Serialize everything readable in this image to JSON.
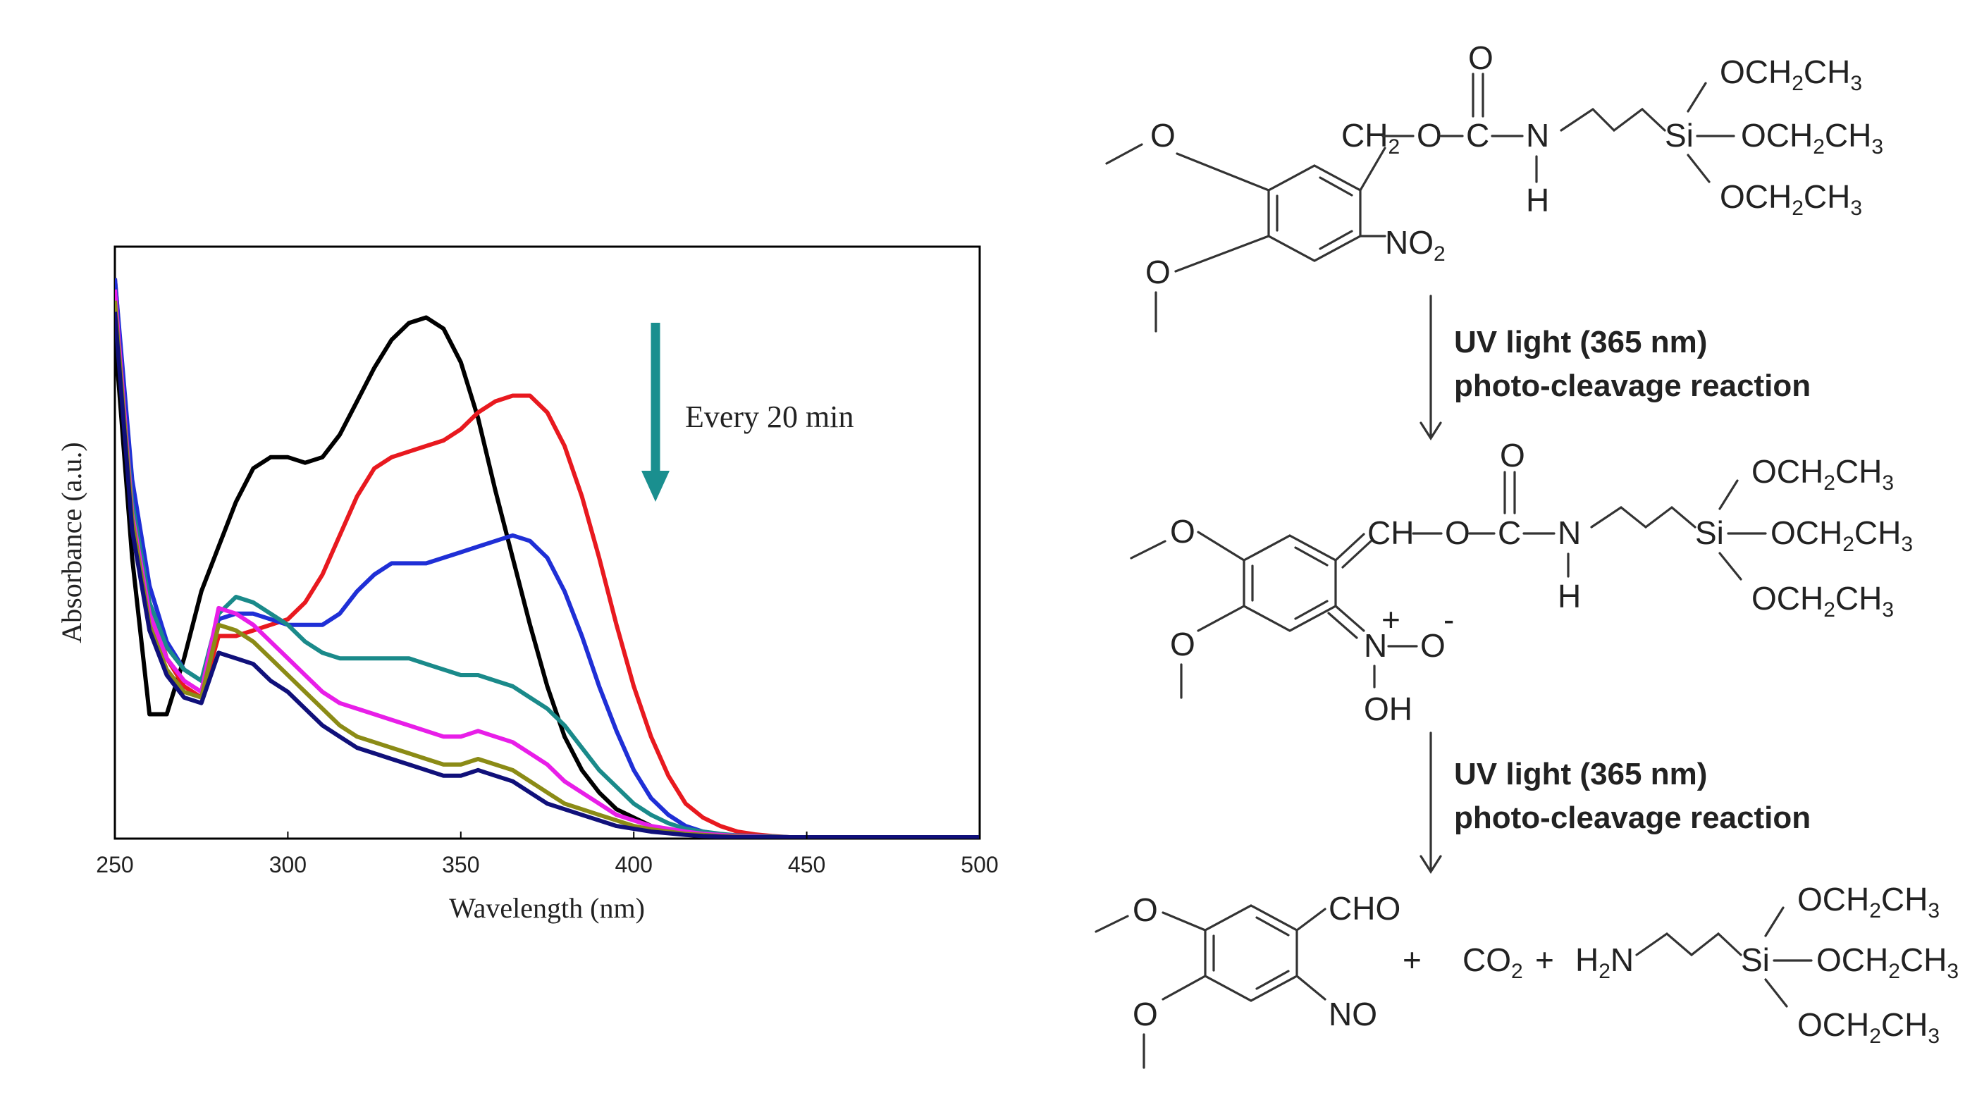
{
  "colors": {
    "frame": "#000000",
    "arrow_annotation": "#1a8f8f",
    "text": "#222222"
  },
  "chart_data": {
    "type": "line",
    "title": "",
    "xlabel": "Wavelength (nm)",
    "ylabel": "Absorbance (a.u.)",
    "xlim": [
      250,
      500
    ],
    "ylim": [
      0,
      1.0
    ],
    "x_ticks": [
      "250",
      "300",
      "350",
      "400",
      "450",
      "500"
    ],
    "grid": false,
    "legend": "none",
    "annotation": "Every 20 min",
    "annotation_arrow": "down",
    "x": [
      250,
      255,
      260,
      265,
      270,
      275,
      280,
      285,
      290,
      295,
      300,
      305,
      310,
      315,
      320,
      325,
      330,
      335,
      340,
      345,
      350,
      355,
      360,
      365,
      370,
      375,
      380,
      385,
      390,
      395,
      400,
      405,
      410,
      415,
      420,
      425,
      430,
      435,
      440,
      445,
      450,
      460,
      470,
      480,
      490,
      500
    ],
    "series": [
      {
        "color": "#000000",
        "values": [
          0.9,
          0.5,
          0.22,
          0.22,
          0.32,
          0.44,
          0.52,
          0.6,
          0.66,
          0.68,
          0.68,
          0.67,
          0.68,
          0.72,
          0.78,
          0.84,
          0.89,
          0.92,
          0.93,
          0.91,
          0.85,
          0.75,
          0.62,
          0.5,
          0.38,
          0.27,
          0.18,
          0.12,
          0.08,
          0.05,
          0.035,
          0.02,
          0.01,
          0.005,
          0.003,
          0.002,
          0.001,
          0.0,
          0.0,
          0.0,
          0.0,
          0.0,
          0.0,
          0.0,
          0.0,
          0.0
        ]
      },
      {
        "color": "#e8191f",
        "values": [
          1.0,
          0.62,
          0.42,
          0.32,
          0.27,
          0.25,
          0.36,
          0.36,
          0.37,
          0.38,
          0.39,
          0.42,
          0.47,
          0.54,
          0.61,
          0.66,
          0.68,
          0.69,
          0.7,
          0.71,
          0.73,
          0.76,
          0.78,
          0.79,
          0.79,
          0.76,
          0.7,
          0.61,
          0.5,
          0.38,
          0.27,
          0.18,
          0.11,
          0.06,
          0.035,
          0.02,
          0.01,
          0.005,
          0.002,
          0.0,
          0.0,
          0.0,
          0.0,
          0.0,
          0.0,
          0.0
        ]
      },
      {
        "color": "#1f2fd6",
        "values": [
          1.0,
          0.64,
          0.45,
          0.35,
          0.3,
          0.28,
          0.39,
          0.4,
          0.4,
          0.39,
          0.38,
          0.38,
          0.38,
          0.4,
          0.44,
          0.47,
          0.49,
          0.49,
          0.49,
          0.5,
          0.51,
          0.52,
          0.53,
          0.54,
          0.53,
          0.5,
          0.44,
          0.36,
          0.27,
          0.19,
          0.12,
          0.07,
          0.04,
          0.02,
          0.01,
          0.005,
          0.003,
          0.002,
          0.001,
          0.0,
          0.0,
          0.0,
          0.0,
          0.0,
          0.0,
          0.0
        ]
      },
      {
        "color": "#1a8a8a",
        "values": [
          0.95,
          0.6,
          0.42,
          0.34,
          0.3,
          0.28,
          0.4,
          0.43,
          0.42,
          0.4,
          0.38,
          0.35,
          0.33,
          0.32,
          0.32,
          0.32,
          0.32,
          0.32,
          0.31,
          0.3,
          0.29,
          0.29,
          0.28,
          0.27,
          0.25,
          0.23,
          0.2,
          0.16,
          0.12,
          0.09,
          0.06,
          0.04,
          0.025,
          0.015,
          0.01,
          0.006,
          0.003,
          0.002,
          0.001,
          0.0,
          0.0,
          0.0,
          0.0,
          0.0,
          0.0,
          0.0
        ]
      },
      {
        "color": "#e81ee8",
        "values": [
          0.98,
          0.58,
          0.4,
          0.32,
          0.28,
          0.26,
          0.41,
          0.4,
          0.38,
          0.35,
          0.32,
          0.29,
          0.26,
          0.24,
          0.23,
          0.22,
          0.21,
          0.2,
          0.19,
          0.18,
          0.18,
          0.19,
          0.18,
          0.17,
          0.15,
          0.13,
          0.1,
          0.08,
          0.06,
          0.04,
          0.03,
          0.02,
          0.015,
          0.01,
          0.006,
          0.004,
          0.002,
          0.001,
          0.0,
          0.0,
          0.0,
          0.0,
          0.0,
          0.0,
          0.0,
          0.0
        ]
      },
      {
        "color": "#8b8b16",
        "values": [
          0.96,
          0.57,
          0.38,
          0.3,
          0.26,
          0.25,
          0.38,
          0.37,
          0.35,
          0.32,
          0.29,
          0.26,
          0.23,
          0.2,
          0.18,
          0.17,
          0.16,
          0.15,
          0.14,
          0.13,
          0.13,
          0.14,
          0.13,
          0.12,
          0.1,
          0.08,
          0.06,
          0.05,
          0.04,
          0.03,
          0.02,
          0.014,
          0.01,
          0.006,
          0.004,
          0.002,
          0.001,
          0.0,
          0.0,
          0.0,
          0.0,
          0.0,
          0.0,
          0.0,
          0.0,
          0.0
        ]
      },
      {
        "color": "#10107a",
        "values": [
          0.94,
          0.55,
          0.37,
          0.29,
          0.25,
          0.24,
          0.33,
          0.32,
          0.31,
          0.28,
          0.26,
          0.23,
          0.2,
          0.18,
          0.16,
          0.15,
          0.14,
          0.13,
          0.12,
          0.11,
          0.11,
          0.12,
          0.11,
          0.1,
          0.08,
          0.06,
          0.05,
          0.04,
          0.03,
          0.02,
          0.015,
          0.01,
          0.007,
          0.004,
          0.002,
          0.001,
          0.0,
          0.0,
          0.0,
          0.0,
          0.0,
          0.0,
          0.0,
          0.0,
          0.0,
          0.0
        ]
      }
    ]
  },
  "scheme": {
    "step1_condition_line1": "UV light (365 nm)",
    "step1_condition_line2": "photo-cleavage reaction",
    "step2_condition_line1": "UV light (365 nm)",
    "step2_condition_line2": "photo-cleavage reaction",
    "plus": "+"
  }
}
